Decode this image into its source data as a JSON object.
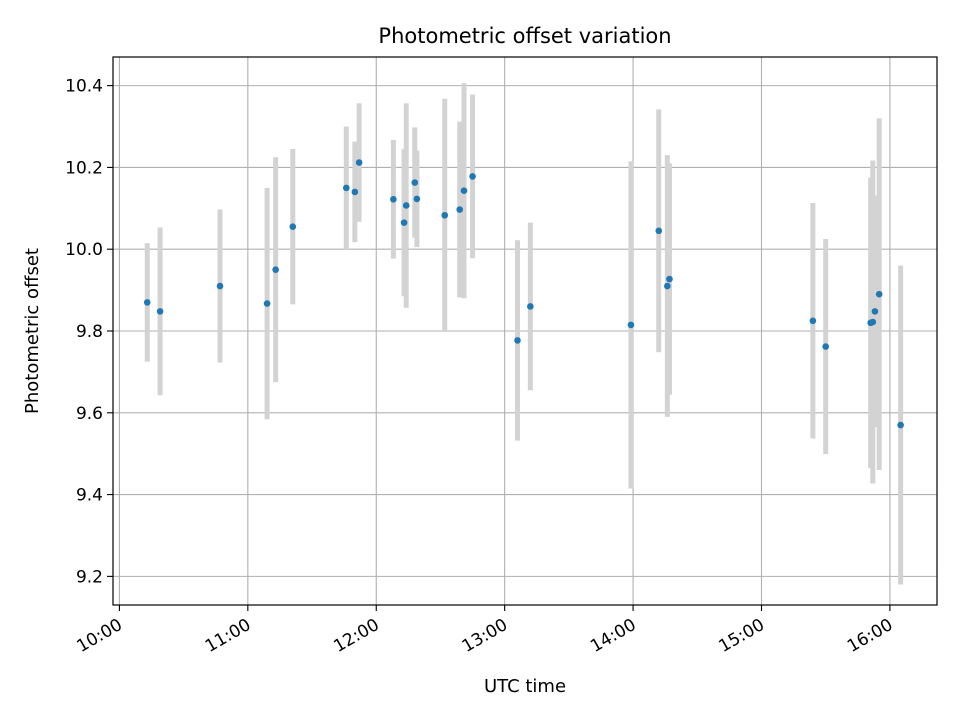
{
  "chart_data": {
    "type": "scatter",
    "title": "Photometric offset variation",
    "xlabel": "UTC time",
    "ylabel": "Photometric offset",
    "x_tick_labels": [
      "10:00",
      "11:00",
      "12:00",
      "13:00",
      "14:00",
      "15:00",
      "16:00"
    ],
    "y_ticks": [
      "9.2",
      "9.4",
      "9.6",
      "9.8",
      "10.0",
      "10.2",
      "10.4"
    ],
    "ylim": [
      9.13,
      10.47
    ],
    "xlim": [
      "09:57",
      "16:22"
    ],
    "grid": true,
    "colors": {
      "point": "#1f77b4",
      "errorbar": "#d3d3d3",
      "grid": "#b0b0b0"
    },
    "points": [
      {
        "x": "10:13",
        "y": 9.87,
        "err": 0.145
      },
      {
        "x": "10:19",
        "y": 9.848,
        "err": 0.205
      },
      {
        "x": "10:47",
        "y": 9.91,
        "err": 0.187
      },
      {
        "x": "11:09",
        "y": 9.867,
        "err": 0.283
      },
      {
        "x": "11:13",
        "y": 9.95,
        "err": 0.275
      },
      {
        "x": "11:21",
        "y": 10.055,
        "err": 0.19
      },
      {
        "x": "11:46",
        "y": 10.15,
        "err": 0.15
      },
      {
        "x": "11:50",
        "y": 10.14,
        "err": 0.123
      },
      {
        "x": "11:52",
        "y": 10.212,
        "err": 0.145
      },
      {
        "x": "12:08",
        "y": 10.122,
        "err": 0.145
      },
      {
        "x": "12:13",
        "y": 10.065,
        "err": 0.18
      },
      {
        "x": "12:14",
        "y": 10.107,
        "err": 0.25
      },
      {
        "x": "12:18",
        "y": 10.163,
        "err": 0.135
      },
      {
        "x": "12:19",
        "y": 10.123,
        "err": 0.118
      },
      {
        "x": "12:32",
        "y": 10.083,
        "err": 0.285
      },
      {
        "x": "12:39",
        "y": 10.097,
        "err": 0.215
      },
      {
        "x": "12:41",
        "y": 10.143,
        "err": 0.263
      },
      {
        "x": "12:45",
        "y": 10.178,
        "err": 0.2
      },
      {
        "x": "13:06",
        "y": 9.777,
        "err": 0.245
      },
      {
        "x": "13:12",
        "y": 9.86,
        "err": 0.205
      },
      {
        "x": "13:59",
        "y": 9.815,
        "err": 0.4
      },
      {
        "x": "14:12",
        "y": 10.045,
        "err": 0.297
      },
      {
        "x": "14:16",
        "y": 9.91,
        "err": 0.32
      },
      {
        "x": "14:17",
        "y": 9.927,
        "err": 0.283
      },
      {
        "x": "15:24",
        "y": 9.825,
        "err": 0.288
      },
      {
        "x": "15:30",
        "y": 9.762,
        "err": 0.263
      },
      {
        "x": "15:51",
        "y": 9.82,
        "err": 0.355
      },
      {
        "x": "15:52",
        "y": 9.822,
        "err": 0.395
      },
      {
        "x": "15:53",
        "y": 9.848,
        "err": 0.283
      },
      {
        "x": "15:55",
        "y": 9.89,
        "err": 0.43
      },
      {
        "x": "16:05",
        "y": 9.57,
        "err": 0.39
      }
    ]
  }
}
